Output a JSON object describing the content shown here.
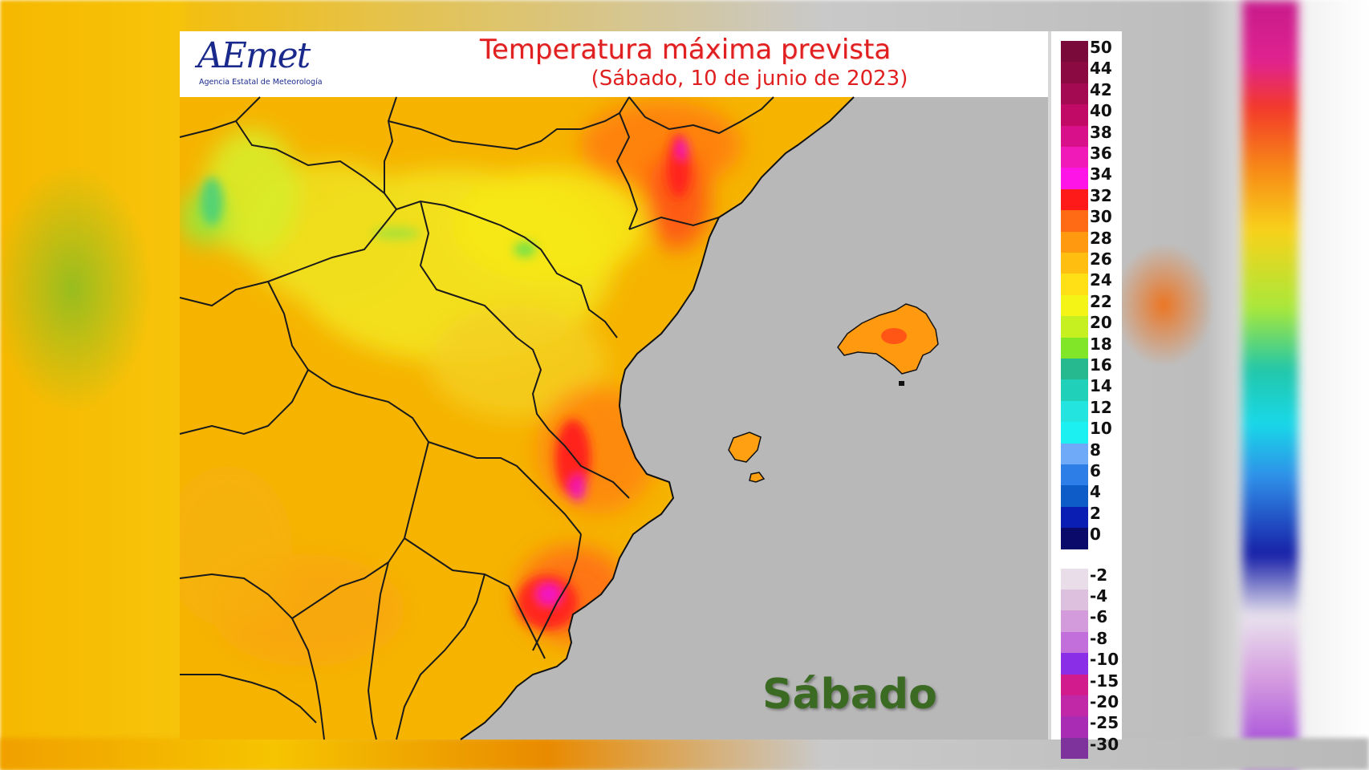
{
  "header": {
    "logo_text": "AEmet",
    "logo_subtitle": "Agencia Estatal de Meteorología",
    "title": "Temperatura máxima prevista",
    "subtitle": "(Sábado, 10 de junio de 2023)"
  },
  "map": {
    "day_label": "Sábado",
    "sea_color": "#b8b8b8",
    "land_base_color": "#f6b400",
    "boundary_color": "#1a1a1a"
  },
  "legend": {
    "items": [
      {
        "label": "50",
        "color": "#7a0a3a"
      },
      {
        "label": "44",
        "color": "#8c0a42"
      },
      {
        "label": "42",
        "color": "#a30a52"
      },
      {
        "label": "40",
        "color": "#c00a66"
      },
      {
        "label": "38",
        "color": "#d8108a"
      },
      {
        "label": "36",
        "color": "#f01ab8"
      },
      {
        "label": "34",
        "color": "#ff14e8"
      },
      {
        "label": "32",
        "color": "#ff1a1a"
      },
      {
        "label": "30",
        "color": "#ff6a14"
      },
      {
        "label": "28",
        "color": "#ff9a10"
      },
      {
        "label": "26",
        "color": "#ffbe10"
      },
      {
        "label": "24",
        "color": "#ffe016"
      },
      {
        "label": "22",
        "color": "#f4f416"
      },
      {
        "label": "20",
        "color": "#c6f020"
      },
      {
        "label": "18",
        "color": "#82e628"
      },
      {
        "label": "16",
        "color": "#26b88e"
      },
      {
        "label": "14",
        "color": "#20d0b8"
      },
      {
        "label": "12",
        "color": "#24e4e0"
      },
      {
        "label": "10",
        "color": "#1cf0f0"
      },
      {
        "label": "8",
        "color": "#6eaaf8"
      },
      {
        "label": "6",
        "color": "#2e7ee8"
      },
      {
        "label": "4",
        "color": "#0e5cc8"
      },
      {
        "label": "2",
        "color": "#0a1eb4"
      },
      {
        "label": "0",
        "color": "#0a0a6a"
      },
      {
        "label": "-2",
        "color": "#e8dde8"
      },
      {
        "label": "-4",
        "color": "#dcc0de"
      },
      {
        "label": "-6",
        "color": "#d39bdc"
      },
      {
        "label": "-8",
        "color": "#c26fdc"
      },
      {
        "label": "-10",
        "color": "#8a2ee8"
      },
      {
        "label": "-15",
        "color": "#d21c8e"
      },
      {
        "label": "-20",
        "color": "#c028a8"
      },
      {
        "label": "-25",
        "color": "#a82cb4"
      },
      {
        "label": "-30",
        "color": "#7e329c"
      }
    ]
  }
}
